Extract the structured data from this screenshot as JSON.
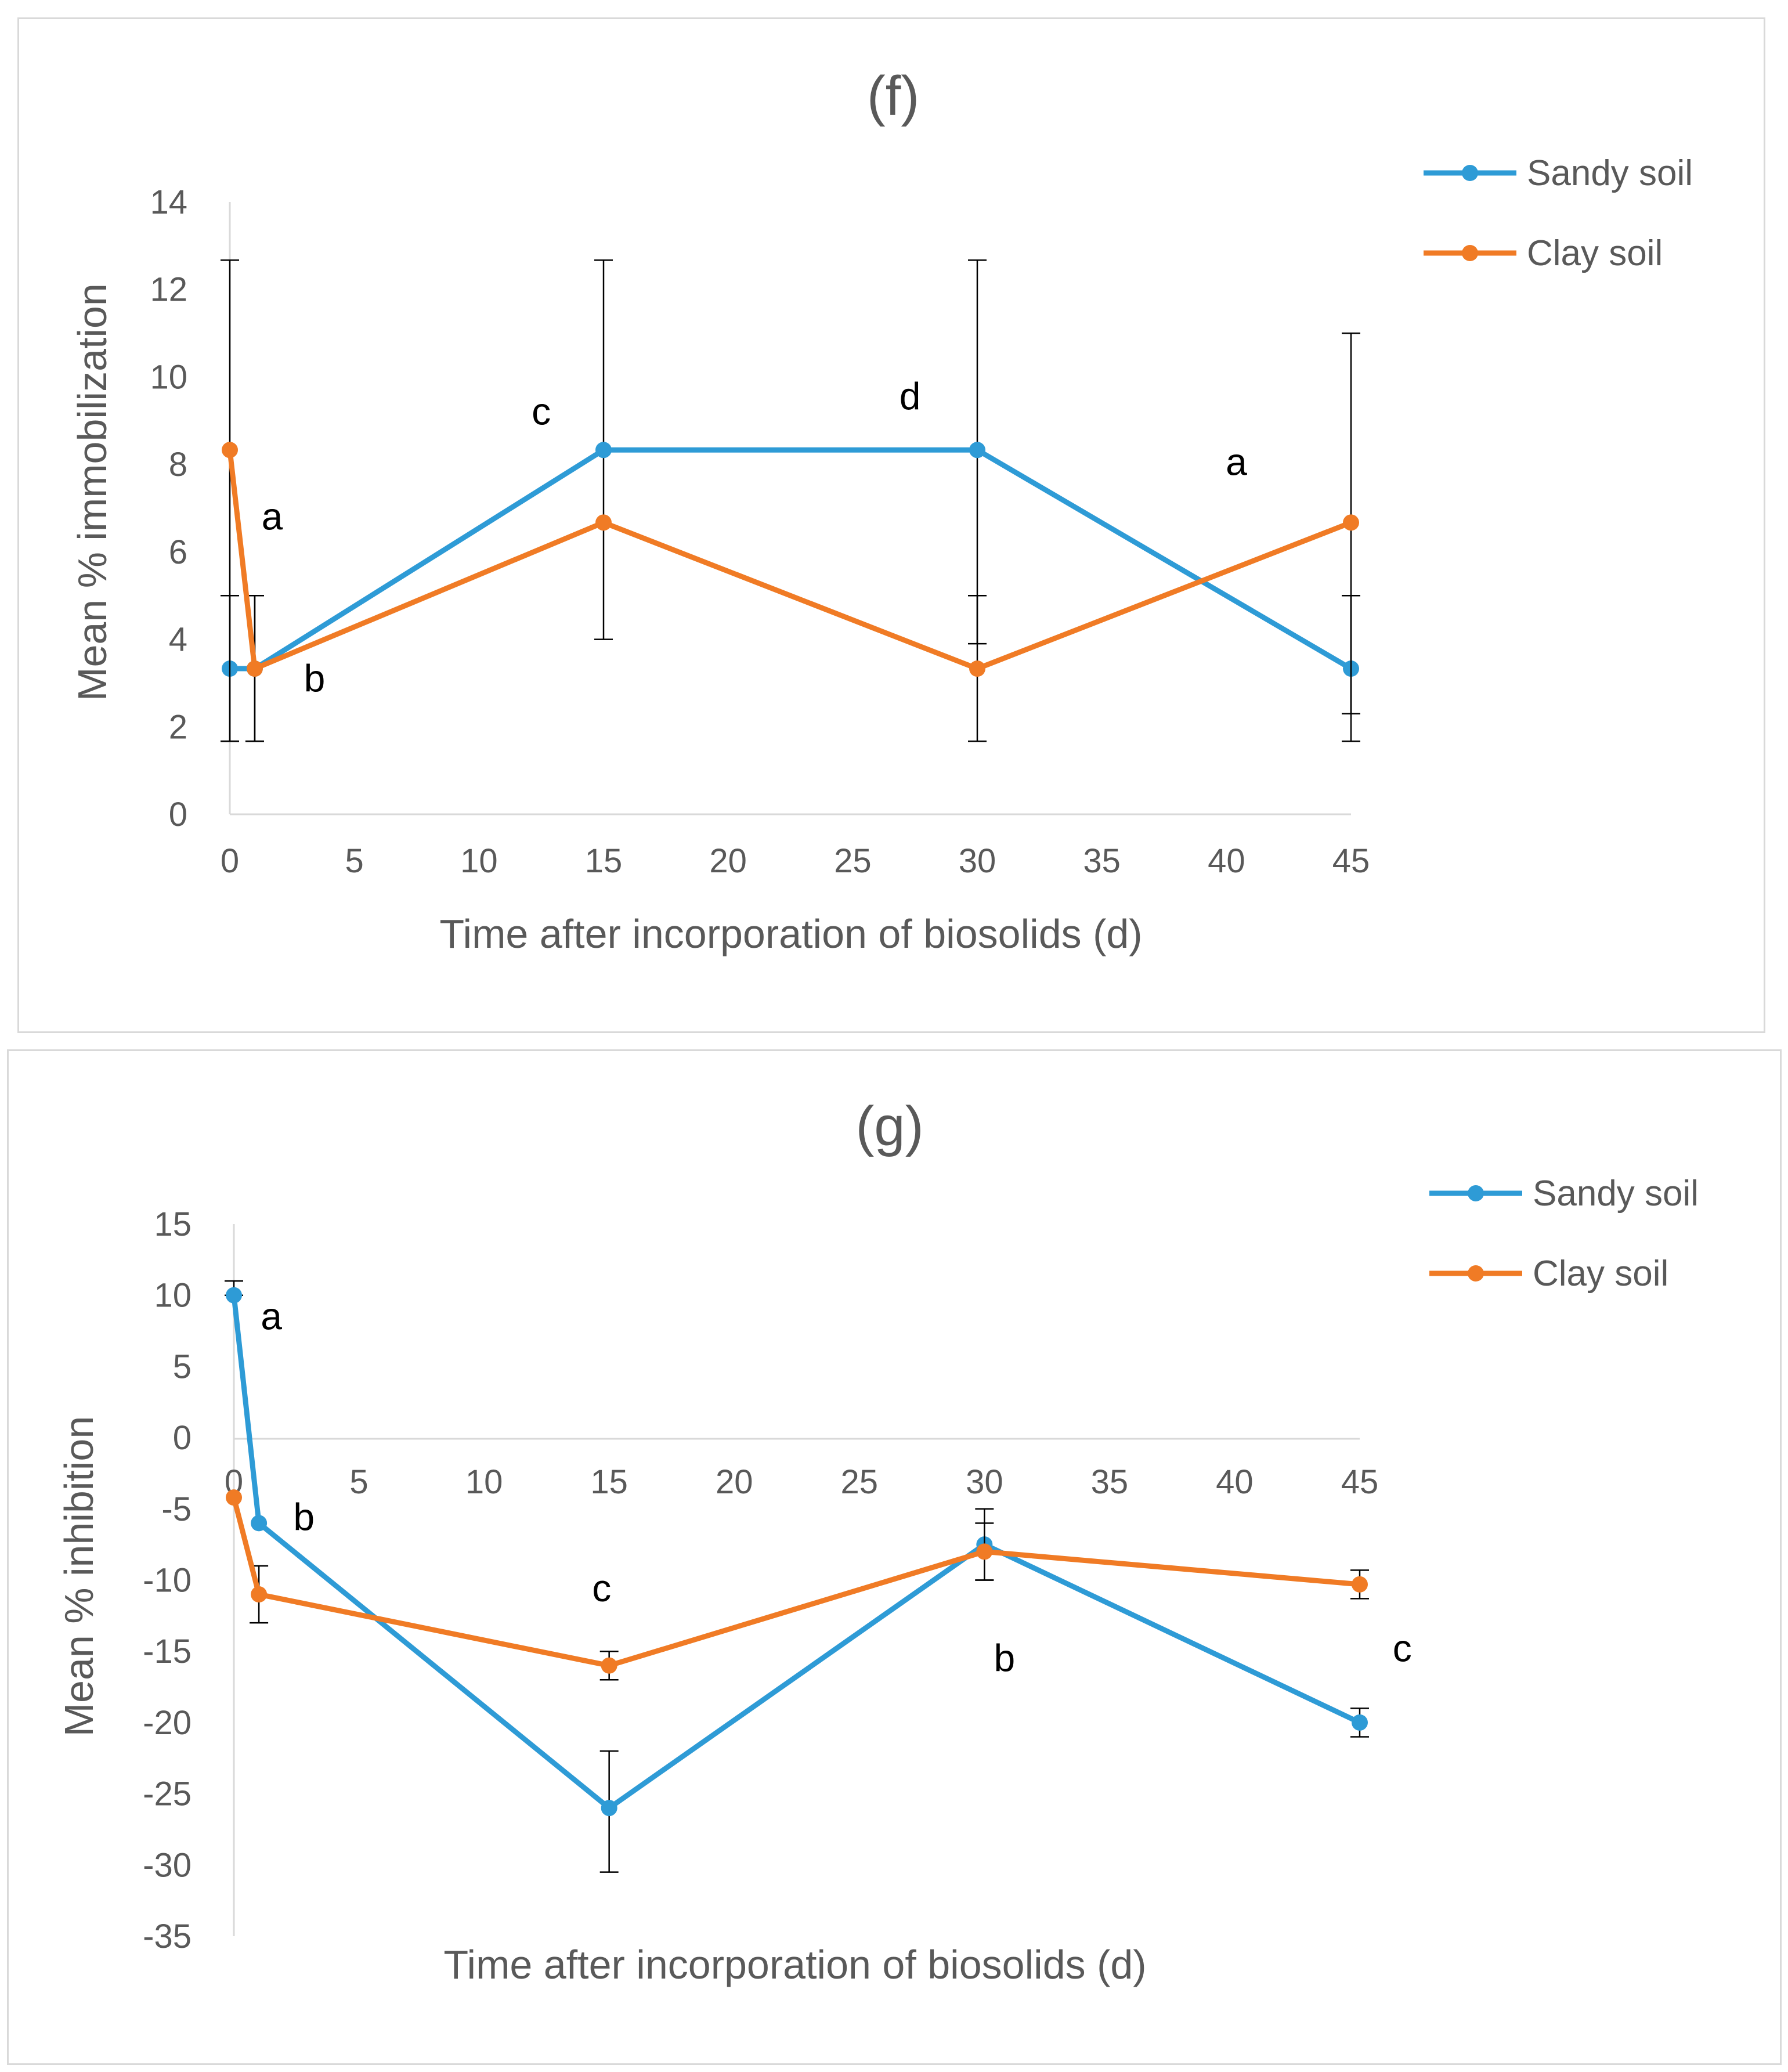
{
  "chart_data": [
    {
      "id": "f",
      "type": "line",
      "title": "(f)",
      "xlabel": "Time after incorporation of biosolids (d)",
      "ylabel": "Mean % immobilization",
      "xlim": [
        0,
        45
      ],
      "ylim": [
        0,
        14
      ],
      "xticks": [
        "0",
        "5",
        "10",
        "15",
        "20",
        "25",
        "30",
        "35",
        "40",
        "45"
      ],
      "yticks": [
        "0",
        "2",
        "4",
        "6",
        "8",
        "10",
        "12",
        "14"
      ],
      "grid": false,
      "legend": "right",
      "series": [
        {
          "name": "Sandy soil",
          "color": "#2e9bd6",
          "x": [
            0,
            1,
            15,
            30,
            45
          ],
          "y": [
            3.33,
            3.33,
            8.33,
            8.33,
            3.33
          ],
          "err_low": [
            1.67,
            1.67,
            4.0,
            1.67,
            1.67
          ],
          "err_high": [
            5.0,
            5.0,
            12.67,
            12.67,
            5.0
          ]
        },
        {
          "name": "Clay soil",
          "color": "#f07b25",
          "x": [
            0,
            1,
            15,
            30,
            45
          ],
          "y": [
            8.33,
            3.33,
            6.67,
            3.33,
            6.67
          ],
          "err_low": [
            1.67,
            1.67,
            5.0,
            3.9,
            2.3
          ],
          "err_high": [
            12.67,
            5.0,
            5.0,
            5.0,
            11.0
          ]
        }
      ],
      "annotations": [
        {
          "text": "a",
          "x": 1.7,
          "y": 6.8
        },
        {
          "text": "b",
          "x": 3.4,
          "y": 3.1
        },
        {
          "text": "c",
          "x": 12.5,
          "y": 9.2
        },
        {
          "text": "d",
          "x": 27.3,
          "y": 9.55
        },
        {
          "text": "a",
          "x": 40.4,
          "y": 8.05
        }
      ]
    },
    {
      "id": "g",
      "type": "line",
      "title": "(g)",
      "xlabel": "Time after incorporation of biosolids (d)",
      "ylabel": "Mean % inhibition",
      "xlim": [
        0,
        45
      ],
      "ylim": [
        -35,
        15
      ],
      "xticks": [
        "0",
        "5",
        "10",
        "15",
        "20",
        "25",
        "30",
        "35",
        "40",
        "45"
      ],
      "yticks": [
        "-35",
        "-30",
        "-25",
        "-20",
        "-15",
        "-10",
        "-5",
        "0",
        "5",
        "10",
        "15"
      ],
      "grid": false,
      "legend": "right",
      "series": [
        {
          "name": "Sandy soil",
          "color": "#2e9bd6",
          "x": [
            0,
            1,
            15,
            30,
            45
          ],
          "y": [
            10,
            -6,
            -26,
            -7.5,
            -20
          ],
          "err_low": [
            10,
            -6,
            -30.5,
            -10,
            -21
          ],
          "err_high": [
            11,
            -6,
            -22,
            -5,
            -19
          ]
        },
        {
          "name": "Clay soil",
          "color": "#f07b25",
          "x": [
            0,
            1,
            15,
            30,
            45
          ],
          "y": [
            -4.2,
            -11,
            -16,
            -8,
            -10.3
          ],
          "err_low": [
            -4.2,
            -13,
            -17,
            -10,
            -11.3
          ],
          "err_high": [
            -4.2,
            -9,
            -15,
            -6,
            -9.3
          ]
        }
      ],
      "annotations": [
        {
          "text": "a",
          "x": 1.5,
          "y": 8.5
        },
        {
          "text": "b",
          "x": 2.8,
          "y": -5.6
        },
        {
          "text": "c",
          "x": 14.7,
          "y": -10.6
        },
        {
          "text": "b",
          "x": 30.8,
          "y": -15.5
        },
        {
          "text": "c",
          "x": 46.7,
          "y": -14.8
        }
      ]
    }
  ]
}
